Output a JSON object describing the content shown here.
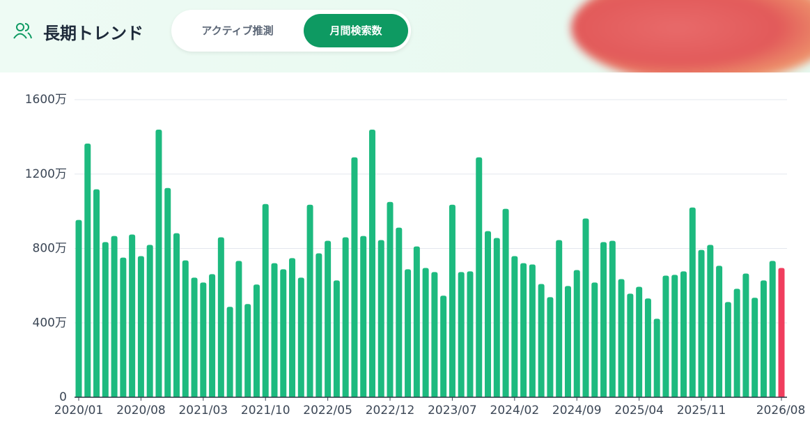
{
  "header": {
    "title": "長期トレンド",
    "tabs": [
      "アクティブ推測",
      "月間検索数"
    ],
    "active_tab": 1
  },
  "chart_data": {
    "type": "bar",
    "categories": [
      "2020/01",
      null,
      null,
      null,
      null,
      null,
      null,
      "2020/08",
      null,
      null,
      null,
      null,
      null,
      null,
      "2021/03",
      null,
      null,
      null,
      null,
      null,
      null,
      "2021/10",
      null,
      null,
      null,
      null,
      null,
      null,
      "2022/05",
      null,
      null,
      null,
      null,
      null,
      null,
      "2022/12",
      null,
      null,
      null,
      null,
      null,
      null,
      "2023/07",
      null,
      null,
      null,
      null,
      null,
      null,
      "2024/02",
      null,
      null,
      null,
      null,
      null,
      null,
      "2024/09",
      null,
      null,
      null,
      null,
      null,
      null,
      "2025/04",
      null,
      null,
      null,
      null,
      null,
      null,
      "2025/11",
      null,
      null,
      null,
      null,
      null,
      null,
      null,
      null,
      "2026/08"
    ],
    "values": [
      953,
      1364,
      1118,
      834,
      867,
      751,
      875,
      759,
      819,
      1439,
      1125,
      882,
      736,
      643,
      617,
      662,
      860,
      486,
      733,
      501,
      606,
      1039,
      721,
      688,
      748,
      643,
      1035,
      774,
      841,
      628,
      860,
      1290,
      867,
      1439,
      845,
      1050,
      912,
      688,
      811,
      695,
      673,
      546,
      1035,
      673,
      677,
      1290,
      893,
      856,
      1013,
      759,
      721,
      714,
      609,
      538,
      845,
      598,
      684,
      961,
      617,
      834,
      841,
      635,
      557,
      594,
      531,
      422,
      654,
      658,
      677,
      1020,
      792,
      819,
      707,
      512,
      583,
      665,
      535,
      628,
      733,
      695
    ],
    "color": "#1dba7f",
    "highlight_color": "#f03e5e",
    "ylim": [
      0,
      1600
    ],
    "yticks": [
      0,
      {
        "value": 400,
        "label": "400万"
      },
      {
        "value": 800,
        "label": "800万"
      },
      {
        "value": 1200,
        "label": "1200万"
      },
      {
        "value": 1600,
        "label": "1600万"
      }
    ],
    "grid": true
  }
}
